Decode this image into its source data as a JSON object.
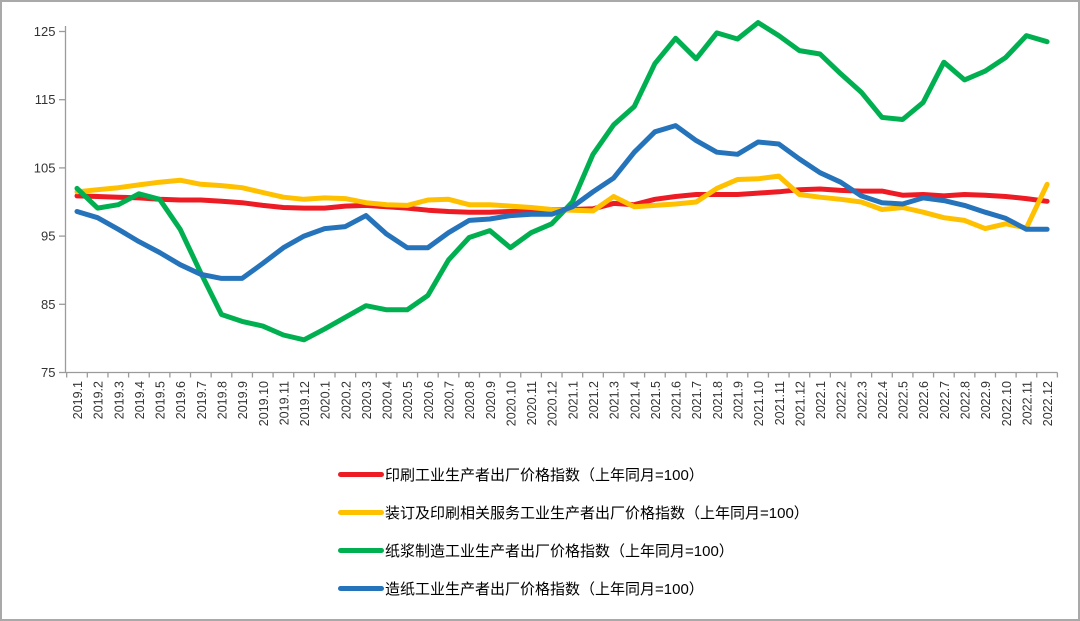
{
  "page": {
    "background": "#ffffff",
    "border_color": "#a9a9a9"
  },
  "chart_data": {
    "type": "line",
    "title": "",
    "grid": false,
    "legend_position": "bottom-left",
    "axis_color": "#9b9b9b",
    "tick_label_color": "#333333",
    "ylim": [
      75,
      125
    ],
    "y_ticks": [
      "75",
      "85",
      "95",
      "105",
      "115",
      "125"
    ],
    "x_categories": [
      "2019.1",
      "2019.2",
      "2019.3",
      "2019.4",
      "2019.5",
      "2019.6",
      "2019.7",
      "2019.8",
      "2019.9",
      "2019.10",
      "2019.11",
      "2019.12",
      "2020.1",
      "2020.2",
      "2020.3",
      "2020.4",
      "2020.5",
      "2020.6",
      "2020.7",
      "2020.8",
      "2020.9",
      "2020.10",
      "2020.11",
      "2020.12",
      "2021.1",
      "2021.2",
      "2021.3",
      "2021.4",
      "2021.5",
      "2021.6",
      "2021.7",
      "2021.8",
      "2021.9",
      "2021.10",
      "2021.11",
      "2021.12",
      "2022.1",
      "2022.2",
      "2022.3",
      "2022.4",
      "2022.5",
      "2022.6",
      "2022.7",
      "2022.8",
      "2022.9",
      "2022.10",
      "2022.11",
      "2022.12"
    ],
    "series": [
      {
        "key": "printing",
        "label": "印刷工业生产者出厂价格指数（上年同月=100）",
        "color": "#ed1c24",
        "values": [
          100.9,
          100.8,
          100.7,
          100.6,
          100.4,
          100.3,
          100.3,
          100.1,
          99.9,
          99.5,
          99.2,
          99.1,
          99.1,
          99.4,
          99.5,
          99.3,
          99.1,
          98.8,
          98.6,
          98.5,
          98.5,
          98.6,
          98.7,
          98.9,
          98.9,
          99.0,
          99.8,
          99.6,
          100.4,
          100.8,
          101.1,
          101.1,
          101.1,
          101.3,
          101.5,
          101.8,
          101.9,
          101.7,
          101.6,
          101.6,
          101.0,
          101.1,
          100.9,
          101.1,
          101.0,
          100.8,
          100.5,
          100.1
        ]
      },
      {
        "key": "binding-printing-services",
        "label": "装订及印刷相关服务工业生产者出厂价格指数（上年同月=100）",
        "color": "#ffc000",
        "values": [
          101.5,
          101.8,
          102.1,
          102.5,
          102.9,
          103.2,
          102.6,
          102.4,
          102.1,
          101.4,
          100.7,
          100.4,
          100.6,
          100.5,
          99.9,
          99.6,
          99.5,
          100.3,
          100.4,
          99.6,
          99.6,
          99.4,
          99.2,
          98.9,
          98.8,
          98.7,
          100.8,
          99.3,
          99.5,
          99.7,
          100.0,
          102.0,
          103.3,
          103.4,
          103.8,
          101.1,
          100.7,
          100.4,
          100.0,
          98.9,
          99.2,
          98.5,
          97.7,
          97.3,
          96.1,
          96.8,
          96.2,
          102.6
        ]
      },
      {
        "key": "pulp-manufacturing",
        "label": "纸浆制造工业生产者出厂价格指数（上年同月=100）",
        "color": "#00b050",
        "values": [
          102.0,
          99.1,
          99.6,
          101.2,
          100.4,
          96.0,
          89.6,
          83.5,
          82.5,
          81.8,
          80.5,
          79.8,
          81.4,
          83.1,
          84.8,
          84.2,
          84.2,
          86.3,
          91.5,
          94.8,
          95.8,
          93.3,
          95.5,
          96.8,
          100.0,
          107.0,
          111.3,
          114.0,
          120.3,
          124.0,
          121.0,
          124.8,
          123.9,
          126.3,
          124.4,
          122.2,
          121.7,
          118.8,
          116.1,
          112.4,
          112.1,
          114.6,
          120.5,
          117.9,
          119.2,
          121.2,
          124.4,
          123.5
        ]
      },
      {
        "key": "papermaking",
        "label": "造纸工业生产者出厂价格指数（上年同月=100）",
        "color": "#2573ba",
        "values": [
          98.6,
          97.7,
          96.0,
          94.2,
          92.6,
          90.8,
          89.4,
          88.8,
          88.8,
          91.0,
          93.3,
          95.0,
          96.1,
          96.4,
          98.0,
          95.3,
          93.3,
          93.3,
          95.5,
          97.3,
          97.5,
          98.0,
          98.2,
          98.2,
          99.3,
          101.5,
          103.5,
          107.3,
          110.3,
          111.2,
          109.0,
          107.3,
          107.0,
          108.8,
          108.5,
          106.3,
          104.3,
          102.9,
          100.9,
          99.9,
          99.7,
          100.6,
          100.2,
          99.5,
          98.5,
          97.6,
          96.0,
          96.0
        ]
      }
    ]
  }
}
